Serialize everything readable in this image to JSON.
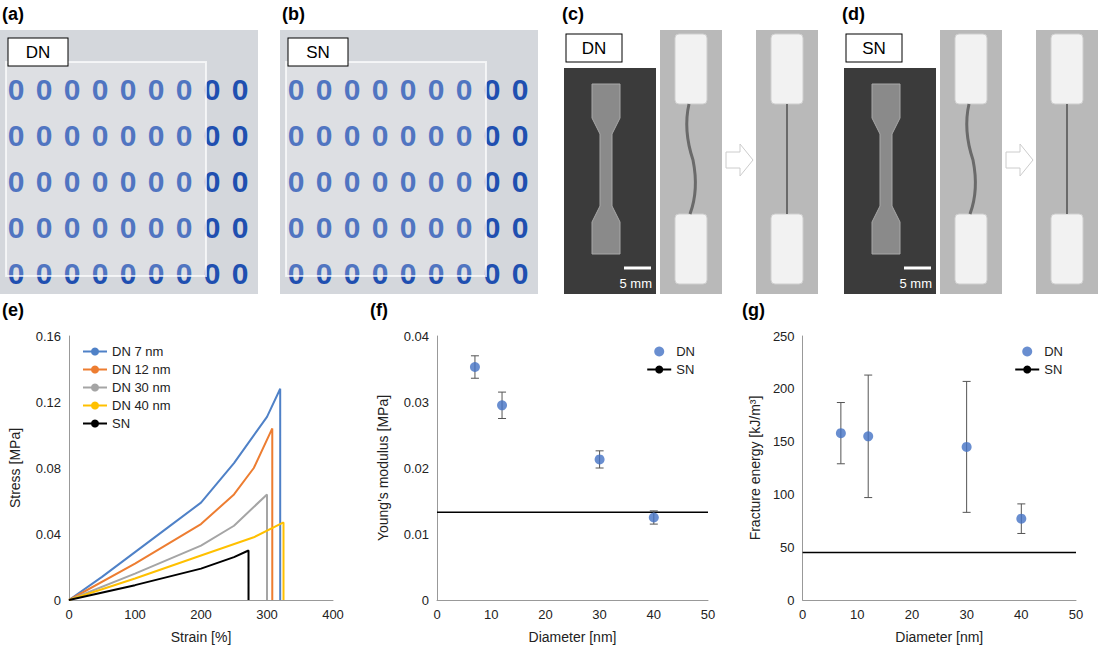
{
  "panels": [
    {
      "panel_label": "(a)",
      "label": "DN",
      "background_glyph": "0"
    },
    {
      "panel_label": "(b)",
      "label": "SN",
      "background_glyph": "0"
    },
    {
      "panel_label": "(c)",
      "label": "DN",
      "scale_bar": "5 mm"
    },
    {
      "panel_label": "(d)",
      "label": "SN",
      "scale_bar": "5 mm"
    }
  ],
  "chart_data": [
    {
      "panel_label": "(e)",
      "type": "line",
      "x_label": "Strain [%]",
      "y_label": "Stress [MPa]",
      "xlim": [
        0,
        400
      ],
      "xticks": [
        0,
        100,
        200,
        300,
        400
      ],
      "ylim": [
        0,
        0.16
      ],
      "yticks": [
        0,
        0.04,
        0.08,
        0.12,
        0.16
      ],
      "grid": false,
      "legend": "upper left",
      "series": [
        {
          "name": "DN 7 nm",
          "color": "#4f81c7",
          "x": [
            0,
            50,
            100,
            150,
            200,
            250,
            300,
            320,
            320
          ],
          "values": [
            0,
            0.014,
            0.029,
            0.044,
            0.059,
            0.083,
            0.111,
            0.128,
            0
          ]
        },
        {
          "name": "DN 12 nm",
          "color": "#ed7d31",
          "x": [
            0,
            100,
            200,
            250,
            280,
            308,
            308
          ],
          "values": [
            0,
            0.022,
            0.046,
            0.064,
            0.08,
            0.104,
            0
          ]
        },
        {
          "name": "DN 30 nm",
          "color": "#a5a5a5",
          "x": [
            0,
            100,
            200,
            250,
            300,
            300
          ],
          "values": [
            0,
            0.016,
            0.033,
            0.045,
            0.064,
            0
          ]
        },
        {
          "name": "DN 40 nm",
          "color": "#ffc000",
          "x": [
            0,
            100,
            200,
            280,
            325,
            325
          ],
          "values": [
            0,
            0.013,
            0.027,
            0.038,
            0.047,
            0
          ]
        },
        {
          "name": "SN",
          "color": "#000000",
          "x": [
            0,
            100,
            200,
            250,
            272,
            272
          ],
          "values": [
            0,
            0.009,
            0.019,
            0.026,
            0.03,
            0
          ]
        }
      ]
    },
    {
      "panel_label": "(f)",
      "type": "scatter",
      "x_label": "Diameter [nm]",
      "y_label": "Young's modulus [MPa]",
      "xlim": [
        0,
        50
      ],
      "xticks": [
        0,
        10,
        20,
        30,
        40,
        50
      ],
      "ylim": [
        0,
        0.04
      ],
      "yticks": [
        0,
        0.01,
        0.02,
        0.03,
        0.04
      ],
      "grid": false,
      "legend": "upper right",
      "series": [
        {
          "name": "DN",
          "type": "scatter",
          "marker": "circle",
          "color": "#4472c4",
          "x": [
            7,
            12,
            30,
            40
          ],
          "values": [
            0.0353,
            0.0295,
            0.0213,
            0.0125
          ],
          "errors": [
            0.0017,
            0.002,
            0.0013,
            0.001
          ]
        },
        {
          "name": "SN",
          "type": "line",
          "color": "#000000",
          "x": [
            0,
            50
          ],
          "values": [
            0.0133,
            0.0133
          ]
        }
      ]
    },
    {
      "panel_label": "(g)",
      "type": "scatter",
      "x_label": "Diameter [nm]",
      "y_label": "Fracture energy [kJ/m³]",
      "xlim": [
        0,
        50
      ],
      "xticks": [
        0,
        10,
        20,
        30,
        40,
        50
      ],
      "ylim": [
        0,
        250
      ],
      "yticks": [
        0,
        50,
        100,
        150,
        200,
        250
      ],
      "grid": false,
      "legend": "upper right",
      "series": [
        {
          "name": "DN",
          "type": "scatter",
          "marker": "circle",
          "color": "#4472c4",
          "x": [
            7,
            12,
            30,
            40
          ],
          "values": [
            158,
            155,
            145,
            77
          ],
          "errors": [
            29,
            58,
            62,
            14
          ]
        },
        {
          "name": "SN",
          "type": "line",
          "color": "#000000",
          "x": [
            0,
            50
          ],
          "values": [
            45,
            45
          ]
        }
      ]
    }
  ]
}
